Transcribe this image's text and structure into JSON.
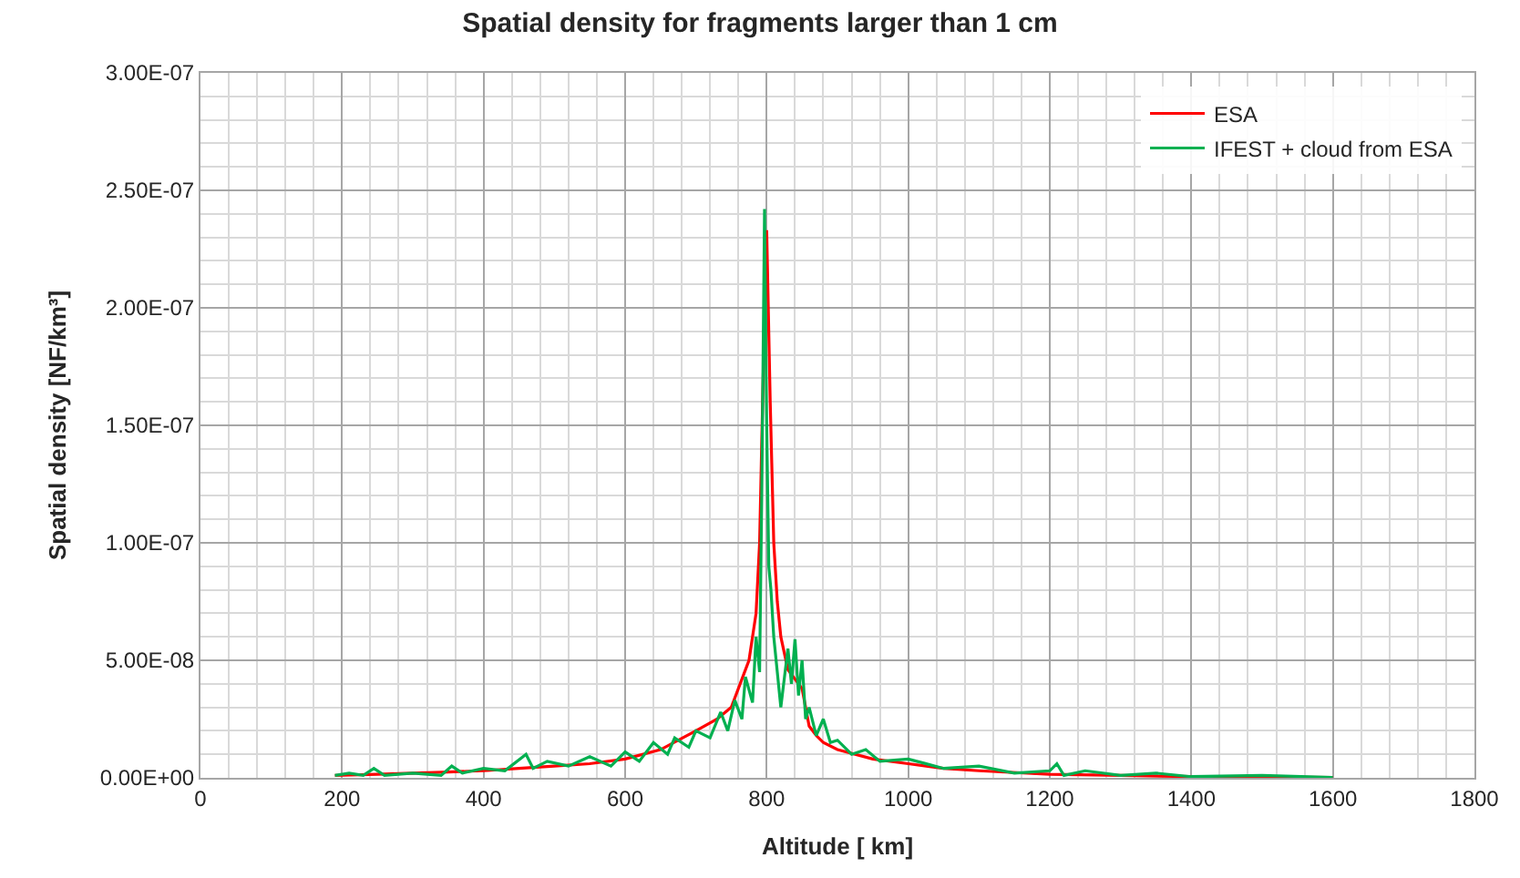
{
  "chart_data": {
    "type": "line",
    "title": "Spatial density for fragments larger than 1 cm",
    "xlabel": "Altitude [ km]",
    "ylabel": "Spatial density [NF/km³]",
    "xlim": [
      0,
      1800
    ],
    "xticks": [
      0,
      200,
      400,
      600,
      800,
      1000,
      1200,
      1400,
      1600,
      1800
    ],
    "ylim": [
      0,
      3e-07
    ],
    "yticks": [
      {
        "value": 0,
        "label": "0.00E+00"
      },
      {
        "value": 5e-08,
        "label": "5.00E-08"
      },
      {
        "value": 1e-07,
        "label": "1.00E-07"
      },
      {
        "value": 1.5e-07,
        "label": "1.50E-07"
      },
      {
        "value": 2e-07,
        "label": "2.00E-07"
      },
      {
        "value": 2.5e-07,
        "label": "2.50E-07"
      },
      {
        "value": 3e-07,
        "label": "3.00E-07"
      }
    ],
    "grid": true,
    "legend": "top right",
    "marker": "none",
    "line_style": "solid",
    "series": [
      {
        "name": "ESA",
        "color": "#ff0000",
        "x": [
          190,
          250,
          300,
          350,
          400,
          450,
          500,
          550,
          600,
          650,
          700,
          730,
          750,
          765,
          775,
          785,
          790,
          795,
          800,
          805,
          810,
          815,
          820,
          830,
          840,
          850,
          860,
          870,
          880,
          900,
          950,
          1000,
          1050,
          1100,
          1200,
          1300,
          1400,
          1500,
          1600
        ],
        "values": [
          1e-09,
          1.5e-09,
          2e-09,
          2.5e-09,
          3e-09,
          4e-09,
          5e-09,
          6e-09,
          8e-09,
          1.2e-08,
          2e-08,
          2.5e-08,
          3e-08,
          4.2e-08,
          5e-08,
          7e-08,
          1e-07,
          1.7e-07,
          2.33e-07,
          1.6e-07,
          1e-07,
          7.5e-08,
          6e-08,
          4.6e-08,
          4.2e-08,
          3.8e-08,
          2.2e-08,
          1.8e-08,
          1.5e-08,
          1.2e-08,
          8e-09,
          6e-09,
          4e-09,
          3e-09,
          1.5e-09,
          1e-09,
          5e-10,
          3e-10,
          2e-10
        ]
      },
      {
        "name": "IFEST + cloud from ESA",
        "color": "#00b050",
        "x": [
          190,
          210,
          230,
          245,
          260,
          300,
          340,
          355,
          370,
          400,
          430,
          460,
          470,
          490,
          520,
          550,
          580,
          600,
          620,
          640,
          660,
          670,
          690,
          700,
          720,
          735,
          745,
          755,
          765,
          770,
          780,
          785,
          790,
          793,
          797,
          800,
          803,
          806,
          810,
          815,
          820,
          830,
          835,
          840,
          845,
          850,
          855,
          860,
          870,
          880,
          890,
          900,
          920,
          940,
          960,
          1000,
          1050,
          1100,
          1150,
          1200,
          1210,
          1220,
          1250,
          1300,
          1350,
          1400,
          1500,
          1600
        ],
        "values": [
          1e-09,
          2e-09,
          1e-09,
          4e-09,
          1e-09,
          2e-09,
          1e-09,
          5e-09,
          2e-09,
          4e-09,
          3e-09,
          1e-08,
          4e-09,
          7e-09,
          5e-09,
          9e-09,
          5e-09,
          1.1e-08,
          7e-09,
          1.5e-08,
          1e-08,
          1.7e-08,
          1.3e-08,
          2e-08,
          1.7e-08,
          2.8e-08,
          2e-08,
          3.3e-08,
          2.5e-08,
          4.3e-08,
          3.2e-08,
          6e-08,
          4.5e-08,
          1.2e-07,
          2.42e-07,
          1.5e-07,
          9e-08,
          8e-08,
          6e-08,
          4.5e-08,
          3e-08,
          5.5e-08,
          4e-08,
          5.9e-08,
          3.5e-08,
          5e-08,
          2.5e-08,
          3e-08,
          1.8e-08,
          2.5e-08,
          1.5e-08,
          1.6e-08,
          1e-08,
          1.2e-08,
          7e-09,
          8e-09,
          4e-09,
          5e-09,
          2e-09,
          3e-09,
          6e-09,
          1e-09,
          3e-09,
          1e-09,
          2e-09,
          5e-10,
          1e-09,
          2e-10
        ]
      }
    ]
  }
}
